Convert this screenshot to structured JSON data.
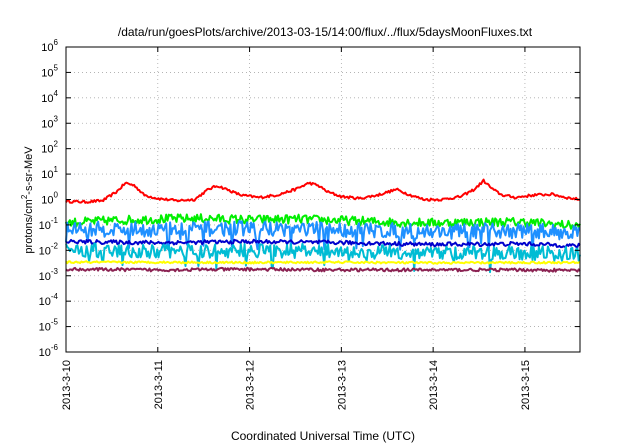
{
  "chart_data": {
    "type": "line",
    "title": "/data/run/goesPlots/archive/2013-03-15/14:00/flux/../flux/5daysMoonFluxes.txt",
    "xlabel": "Coordinated Universal Time (UTC)",
    "ylabel": {
      "pre": "protons/cm",
      "sup": "2",
      "post": "-s-sr-MeV"
    },
    "x_range_days": [
      0,
      5.6
    ],
    "x_ticks": [
      {
        "label": "2013-3-10",
        "day": 0
      },
      {
        "label": "2013-3-11",
        "day": 1
      },
      {
        "label": "2013-3-12",
        "day": 2
      },
      {
        "label": "2013-3-13",
        "day": 3
      },
      {
        "label": "2013-3-14",
        "day": 4
      },
      {
        "label": "2013-3-15",
        "day": 5
      }
    ],
    "y_scale": "log",
    "ylim_exp": [
      -6,
      6
    ],
    "y_ticks": [
      {
        "base": "10",
        "exp": "6"
      },
      {
        "base": "10",
        "exp": "5"
      },
      {
        "base": "10",
        "exp": "4"
      },
      {
        "base": "10",
        "exp": "3"
      },
      {
        "base": "10",
        "exp": "2"
      },
      {
        "base": "10",
        "exp": "1"
      },
      {
        "base": "10",
        "exp": "0"
      },
      {
        "base": "10",
        "exp": "-1"
      },
      {
        "base": "10",
        "exp": "-2"
      },
      {
        "base": "10",
        "exp": "-3"
      },
      {
        "base": "10",
        "exp": "-4"
      },
      {
        "base": "10",
        "exp": "-5"
      },
      {
        "base": "10",
        "exp": "-6"
      }
    ],
    "grid": true,
    "series": [
      {
        "color": "#ff0000",
        "noise": 0.05,
        "x": [
          0,
          0.2,
          0.4,
          0.55,
          0.65,
          0.75,
          0.85,
          1.0,
          1.2,
          1.4,
          1.55,
          1.65,
          1.75,
          1.9,
          2.1,
          2.3,
          2.5,
          2.65,
          2.75,
          2.85,
          3.0,
          3.2,
          3.4,
          3.6,
          3.75,
          3.9,
          4.1,
          4.3,
          4.45,
          4.55,
          4.65,
          4.75,
          4.9,
          5.1,
          5.3,
          5.45,
          5.6
        ],
        "y": [
          0.85,
          0.8,
          0.9,
          2.0,
          4.5,
          3.5,
          1.5,
          1.1,
          0.9,
          1.0,
          2.5,
          3.5,
          2.5,
          1.5,
          1.2,
          1.5,
          2.5,
          4.5,
          3.5,
          2.0,
          1.3,
          1.1,
          1.5,
          2.5,
          1.5,
          1.0,
          1.0,
          1.3,
          2.5,
          5.5,
          2.5,
          1.5,
          1.2,
          1.5,
          1.6,
          1.2,
          1.0
        ]
      },
      {
        "color": "#00ee00",
        "noise": 0.18,
        "x": [
          0,
          0.5,
          1.0,
          1.5,
          2.0,
          2.5,
          3.0,
          3.5,
          4.0,
          4.5,
          5.0,
          5.6
        ],
        "y": [
          0.12,
          0.15,
          0.17,
          0.18,
          0.16,
          0.17,
          0.15,
          0.13,
          0.12,
          0.13,
          0.13,
          0.09
        ]
      },
      {
        "color": "#1e90ff",
        "noise": 0.3,
        "x": [
          0,
          1.0,
          2.0,
          3.0,
          4.0,
          5.0,
          5.6
        ],
        "y": [
          0.07,
          0.065,
          0.075,
          0.065,
          0.055,
          0.06,
          0.05
        ]
      },
      {
        "color": "#0000cc",
        "noise": 0.08,
        "x": [
          0,
          1.0,
          2.0,
          3.0,
          4.0,
          5.0,
          5.6
        ],
        "y": [
          0.022,
          0.02,
          0.022,
          0.02,
          0.017,
          0.018,
          0.015
        ]
      },
      {
        "color": "#00bcd4",
        "noise": 0.28,
        "x": [
          0,
          1.0,
          2.0,
          3.0,
          4.0,
          5.0,
          5.6
        ],
        "y": [
          0.01,
          0.009,
          0.01,
          0.009,
          0.008,
          0.008,
          0.007
        ]
      },
      {
        "color": "#ffff00",
        "noise": 0.04,
        "x": [
          0,
          1.0,
          2.0,
          3.0,
          4.0,
          5.0,
          5.6
        ],
        "y": [
          0.0034,
          0.0034,
          0.0033,
          0.0034,
          0.0032,
          0.0033,
          0.0033
        ]
      },
      {
        "color": "#8b2252",
        "noise": 0.06,
        "x": [
          0,
          1.0,
          2.0,
          3.0,
          4.0,
          5.0,
          5.6
        ],
        "y": [
          0.0018,
          0.0017,
          0.0018,
          0.0017,
          0.0017,
          0.0017,
          0.0016
        ]
      }
    ]
  }
}
